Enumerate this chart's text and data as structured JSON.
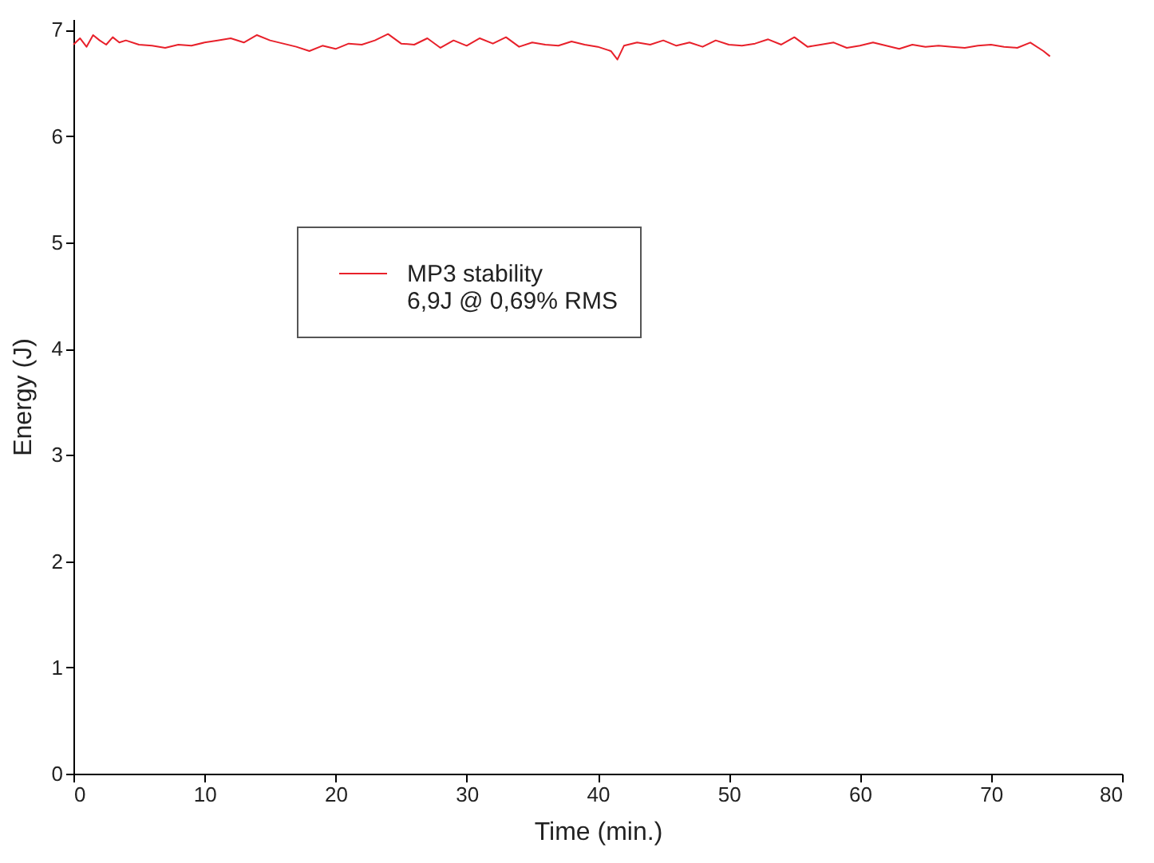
{
  "chart_data": {
    "type": "line",
    "xlabel": "Time (min.)",
    "ylabel": "Energy (J)",
    "xlim": [
      0,
      80
    ],
    "xticks": [
      0,
      10,
      20,
      30,
      40,
      50,
      60,
      70,
      80
    ],
    "ylim": [
      0,
      7.1
    ],
    "yticks": [
      0,
      1,
      2,
      3,
      4,
      5,
      6,
      7
    ],
    "grid": false,
    "legend": "center",
    "marker": "none",
    "line_style": "solid",
    "annotations": [
      "6,9J @ 0,69% RMS"
    ],
    "series": [
      {
        "name": "MP3 stability",
        "color": "#e8202a",
        "x": [
          0,
          0.5,
          1,
          1.5,
          2,
          2.5,
          3,
          3.5,
          4,
          5,
          6,
          7,
          8,
          9,
          10,
          11,
          12,
          13,
          14,
          15,
          16,
          17,
          18,
          19,
          20,
          21,
          22,
          23,
          24,
          25,
          26,
          27,
          28,
          29,
          30,
          31,
          32,
          33,
          34,
          35,
          36,
          37,
          38,
          39,
          40,
          41,
          41.5,
          42,
          43,
          44,
          45,
          46,
          47,
          48,
          49,
          50,
          51,
          52,
          53,
          54,
          55,
          56,
          57,
          58,
          59,
          60,
          61,
          62,
          63,
          64,
          65,
          66,
          67,
          68,
          69,
          70,
          71,
          72,
          73,
          74,
          74.5
        ],
        "values": [
          6.86,
          6.92,
          6.84,
          6.95,
          6.9,
          6.86,
          6.93,
          6.88,
          6.9,
          6.86,
          6.85,
          6.83,
          6.86,
          6.85,
          6.88,
          6.9,
          6.92,
          6.88,
          6.95,
          6.9,
          6.87,
          6.84,
          6.8,
          6.85,
          6.82,
          6.87,
          6.86,
          6.9,
          6.96,
          6.87,
          6.86,
          6.92,
          6.83,
          6.9,
          6.85,
          6.92,
          6.87,
          6.93,
          6.84,
          6.88,
          6.86,
          6.85,
          6.89,
          6.86,
          6.84,
          6.8,
          6.72,
          6.85,
          6.88,
          6.86,
          6.9,
          6.85,
          6.88,
          6.84,
          6.9,
          6.86,
          6.85,
          6.87,
          6.91,
          6.86,
          6.93,
          6.84,
          6.86,
          6.88,
          6.83,
          6.85,
          6.88,
          6.85,
          6.82,
          6.86,
          6.84,
          6.85,
          6.84,
          6.83,
          6.85,
          6.86,
          6.84,
          6.83,
          6.88,
          6.8,
          6.75
        ]
      }
    ]
  }
}
